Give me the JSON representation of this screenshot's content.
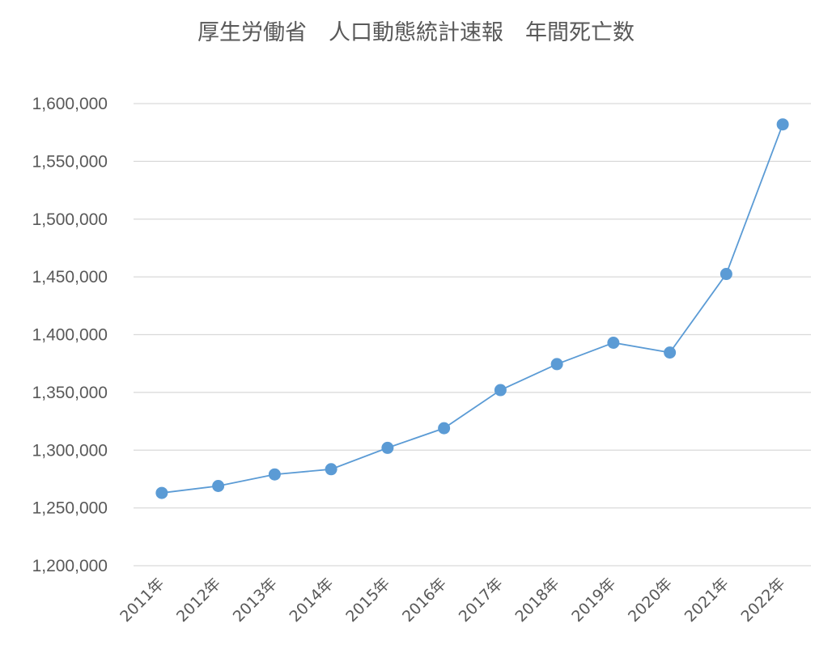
{
  "chart_data": {
    "type": "line",
    "title": "厚生労働省　人口動態統計速報　年間死亡数",
    "xlabel": "",
    "ylabel": "",
    "categories": [
      "2011年",
      "2012年",
      "2013年",
      "2014年",
      "2015年",
      "2016年",
      "2017年",
      "2018年",
      "2019年",
      "2020年",
      "2021年",
      "2022年"
    ],
    "series": [
      {
        "values": [
          1263000,
          1269000,
          1279000,
          1283500,
          1302000,
          1319000,
          1352000,
          1374500,
          1393000,
          1384500,
          1452500,
          1582000
        ]
      }
    ],
    "ylim": [
      1200000,
      1600000
    ],
    "yticks": [
      "1,200,000",
      "1,250,000",
      "1,300,000",
      "1,350,000",
      "1,400,000",
      "1,450,000",
      "1,500,000",
      "1,550,000",
      "1,600,000"
    ],
    "grid": true,
    "legend": "none",
    "colors": {
      "series": "#5b9bd5",
      "grid": "#d9d9d9",
      "text": "#595959"
    }
  }
}
